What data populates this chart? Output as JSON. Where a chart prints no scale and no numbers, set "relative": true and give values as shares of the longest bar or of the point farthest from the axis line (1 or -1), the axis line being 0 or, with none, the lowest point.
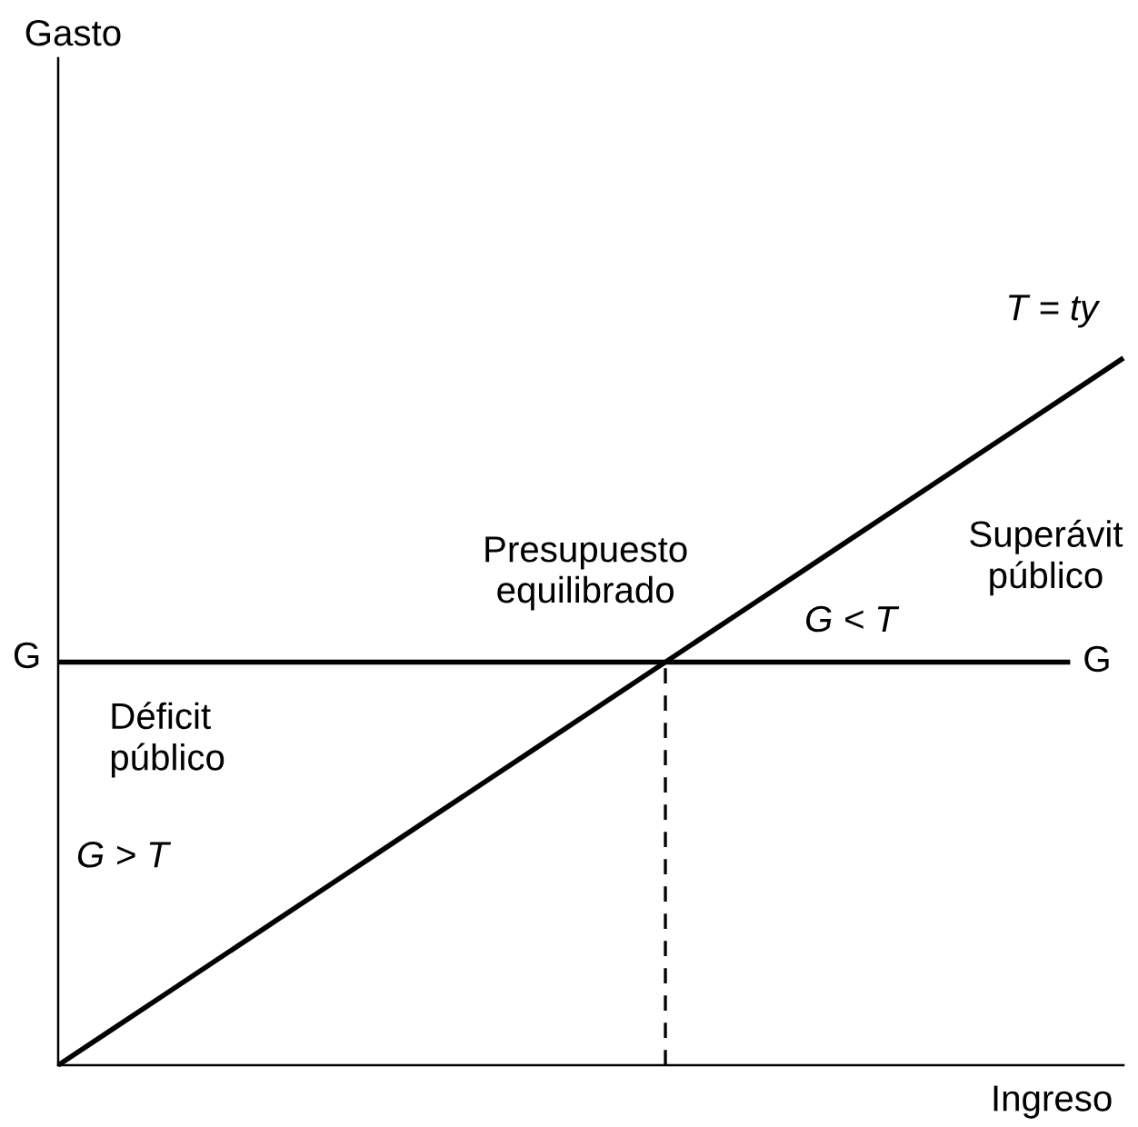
{
  "chart_data": {
    "type": "line",
    "relative": true,
    "xlabel": "Ingreso",
    "categories": [
      null,
      null,
      null,
      null,
      null,
      null,
      null,
      null,
      null,
      null,
      null,
      null,
      null,
      null,
      null,
      null,
      null,
      null,
      null,
      null,
      null
    ],
    "series": [
      {
        "name": "T = ty",
        "color": "#000000",
        "values": [
          0,
          0.05,
          0.1,
          0.15,
          0.2,
          0.25,
          0.3,
          0.35,
          0.4,
          0.45,
          0.5,
          0.55,
          0.6,
          0.65,
          0.7,
          0.75,
          0.8,
          0.85,
          0.9,
          0.95,
          1
        ]
      },
      {
        "name": "G",
        "color": "#000000",
        "values": [
          0.57,
          0.57,
          0.57,
          0.57,
          0.57,
          0.57,
          0.57,
          0.57,
          0.57,
          0.57,
          0.57,
          0.57,
          0.57,
          0.57,
          0.57,
          0.57,
          0.57,
          0.57,
          0.57,
          0.57,
          null
        ]
      }
    ],
    "annotations": [
      "Gasto",
      "Déficit\npúblico",
      "G > T",
      "Presupuesto\nequilibrado",
      "Superávit\npúblico",
      "G < T",
      "G"
    ],
    "legend": false
  }
}
